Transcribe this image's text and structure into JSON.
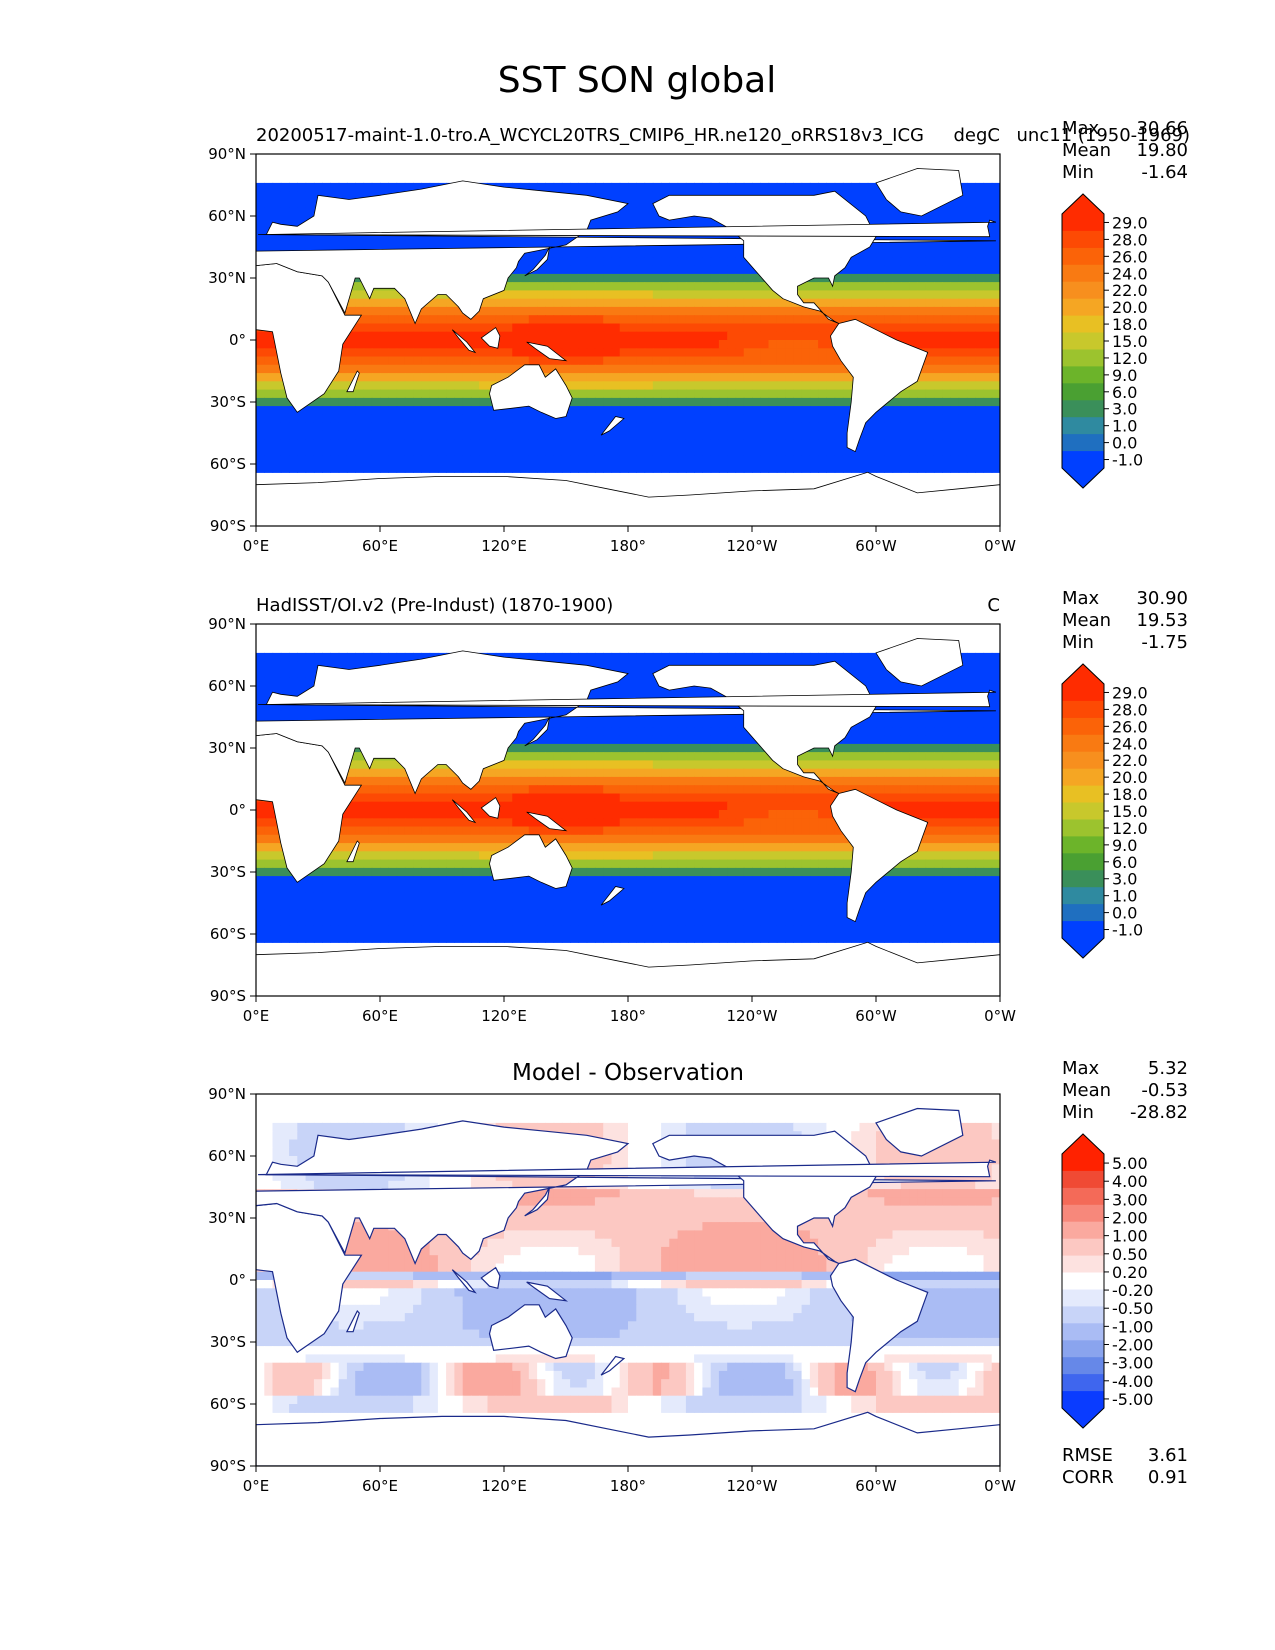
{
  "figure": {
    "title": "SST SON global"
  },
  "lat_ticks": [
    "90°N",
    "60°N",
    "30°N",
    "0°",
    "30°S",
    "60°S",
    "90°S"
  ],
  "lon_ticks": [
    "0°E",
    "60°E",
    "120°E",
    "180°",
    "120°W",
    "60°W",
    "0°W"
  ],
  "panels": [
    {
      "id": "model",
      "left_title": "20200517-maint-1.0-tro.A_WCYCL20TRS_CMIP6_HR.ne120_oRRS18v3_ICG",
      "right_title": "degC",
      "center_title": "",
      "stats": [
        {
          "label": "Max",
          "value": "30.66"
        },
        {
          "label": "Mean",
          "value": "19.80"
        },
        {
          "label": "Min",
          "value": "-1.64"
        }
      ],
      "overlay_text": "unc11 (1950-1969)",
      "colorbar_levels": [
        "29.0",
        "28.0",
        "26.0",
        "24.0",
        "22.0",
        "20.0",
        "18.0",
        "15.0",
        "12.0",
        "9.0",
        "6.0",
        "3.0",
        "1.0",
        "0.0",
        "-1.0"
      ]
    },
    {
      "id": "obs",
      "left_title": "HadISST/OI.v2 (Pre-Indust) (1870-1900)",
      "right_title": "C",
      "center_title": "",
      "stats": [
        {
          "label": "Max",
          "value": "30.90"
        },
        {
          "label": "Mean",
          "value": "19.53"
        },
        {
          "label": "Min",
          "value": "-1.75"
        }
      ],
      "colorbar_levels": [
        "29.0",
        "28.0",
        "26.0",
        "24.0",
        "22.0",
        "20.0",
        "18.0",
        "15.0",
        "12.0",
        "9.0",
        "6.0",
        "3.0",
        "1.0",
        "0.0",
        "-1.0"
      ]
    },
    {
      "id": "diff",
      "left_title": "",
      "right_title": "",
      "center_title": "Model - Observation",
      "stats": [
        {
          "label": "Max",
          "value": "5.32"
        },
        {
          "label": "Mean",
          "value": "-0.53"
        },
        {
          "label": "Min",
          "value": "-28.82"
        }
      ],
      "colorbar_levels": [
        "5.00",
        "4.00",
        "3.00",
        "2.00",
        "1.00",
        "0.50",
        "0.20",
        "-0.20",
        "-0.50",
        "-1.00",
        "-2.00",
        "-3.00",
        "-4.00",
        "-5.00"
      ],
      "bottom_stats": [
        {
          "label": "RMSE",
          "value": "3.61"
        },
        {
          "label": "CORR",
          "value": "0.91"
        }
      ]
    }
  ],
  "colors": {
    "sst_scale": [
      "#0040ff",
      "#1f6fc0",
      "#2f8aa0",
      "#3a8f5a",
      "#4aa032",
      "#6cb42a",
      "#9cc32e",
      "#c8c82c",
      "#e8c023",
      "#f5a623",
      "#f78f1e",
      "#f97a12",
      "#fb6308",
      "#fd4a04",
      "#ff2c00"
    ],
    "diff_scale": [
      "#0a3cff",
      "#3f66ee",
      "#6688e8",
      "#8aa4ee",
      "#aabcf4",
      "#c8d4f8",
      "#e4eafc",
      "#ffffff",
      "#fde2e0",
      "#fcc8c2",
      "#faa99f",
      "#f7887b",
      "#f46a58",
      "#f04a34",
      "#ff2200"
    ],
    "land": "#ffffff",
    "coast": "#000000"
  }
}
